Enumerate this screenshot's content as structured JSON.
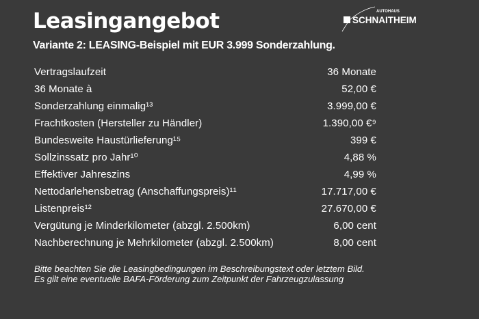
{
  "header": {
    "title": "Leasingangebot",
    "subtitle": "Variante 2: LEASING-Beispiel mit EUR 3.999 Sonderzahlung.",
    "logo": {
      "small": "AUTOHAUS",
      "large": "SCHNAITHEIM"
    }
  },
  "rows": [
    {
      "label": "Vertragslaufzeit",
      "value": "36 Monate"
    },
    {
      "label": "36 Monate à",
      "value": "52,00 €"
    },
    {
      "label": "Sonderzahlung einmalig¹³",
      "value": "3.999,00 €"
    },
    {
      "label": "Frachtkosten (Hersteller zu Händler)",
      "value": "1.390,00 €⁹"
    },
    {
      "label": "Bundesweite Haustürlieferung¹⁵",
      "value": "399 €"
    },
    {
      "label": "Sollzinssatz pro Jahr¹⁰",
      "value": "4,88 %"
    },
    {
      "label": "Effektiver Jahreszins",
      "value": "4,99 %"
    },
    {
      "label": "Nettodarlehensbetrag (Anschaffungspreis)¹¹",
      "value": "17.717,00 €"
    },
    {
      "label": "Listenpreis¹²",
      "value": "27.670,00 €"
    },
    {
      "label": "Vergütung je Minderkilometer (abzgl. 2.500km)",
      "value": "6,00 cent"
    },
    {
      "label": "Nachberechnung je Mehrkilometer (abzgl. 2.500km)",
      "value": "8,00 cent"
    }
  ],
  "notes": [
    "Bitte beachten Sie die Leasingbedingungen im Beschreibungstext oder letztem Bild.",
    "Es gilt eine eventuelle BAFA-Förderung zum Zeitpunkt der Fahrzeugzulassung"
  ],
  "colors": {
    "background": "#3a3a3a",
    "text": "#ffffff"
  }
}
